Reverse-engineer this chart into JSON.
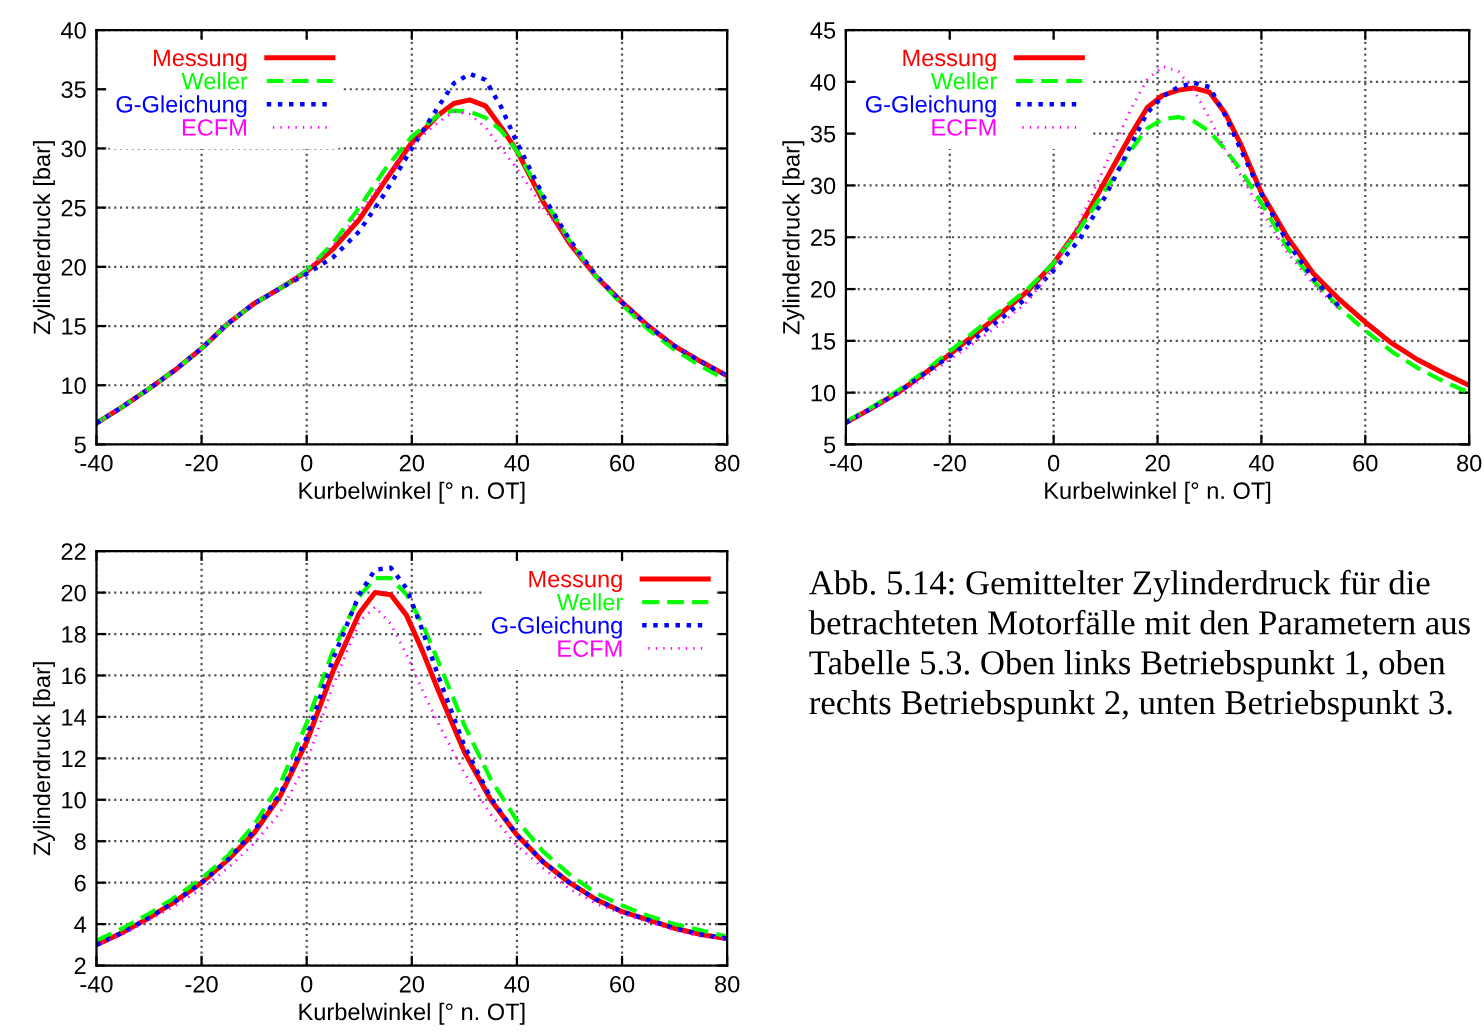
{
  "chart_data": [
    {
      "type": "line",
      "xlabel": "Kurbelwinkel [° n. OT]",
      "ylabel": "Zylinderdruck [bar]",
      "xlim": [
        -40,
        80
      ],
      "xticks": [
        -40,
        -20,
        0,
        20,
        40,
        60,
        80
      ],
      "ylim": [
        5,
        40
      ],
      "yticks": [
        5,
        10,
        15,
        20,
        25,
        30,
        35,
        40
      ],
      "grid": true,
      "legend": "top left",
      "x": [
        -40,
        -35,
        -30,
        -25,
        -20,
        -15,
        -10,
        -5,
        0,
        5,
        10,
        15,
        20,
        25,
        28,
        31,
        34,
        37,
        40,
        45,
        50,
        55,
        60,
        65,
        70,
        75,
        80
      ],
      "series": [
        {
          "name": "Messung",
          "color": "#ff0000",
          "line_style": "solid",
          "values": [
            6.8,
            8.2,
            9.7,
            11.3,
            13.1,
            15.2,
            16.9,
            18.2,
            19.6,
            21.5,
            24.0,
            27.3,
            30.5,
            32.8,
            33.8,
            34.1,
            33.6,
            31.8,
            29.8,
            25.5,
            22.0,
            19.2,
            17.0,
            15.0,
            13.3,
            12.0,
            10.8
          ]
        },
        {
          "name": "Weller",
          "color": "#00ff00",
          "line_style": "dashed",
          "values": [
            6.8,
            8.2,
            9.7,
            11.3,
            13.1,
            15.2,
            16.9,
            18.2,
            19.7,
            22.0,
            25.0,
            28.3,
            31.0,
            32.8,
            33.2,
            33.1,
            32.6,
            31.5,
            29.8,
            25.8,
            22.2,
            19.2,
            16.8,
            14.7,
            13.0,
            11.6,
            10.4
          ]
        },
        {
          "name": "G-Gleichung",
          "color": "#0000ff",
          "line_style": "dotted",
          "values": [
            6.8,
            8.2,
            9.7,
            11.3,
            13.1,
            15.2,
            16.9,
            18.2,
            19.4,
            20.8,
            23.0,
            26.3,
            30.0,
            33.5,
            35.5,
            36.3,
            35.8,
            33.5,
            30.5,
            26.0,
            22.3,
            19.3,
            17.0,
            15.0,
            13.3,
            12.0,
            10.8
          ]
        },
        {
          "name": "ECFM",
          "color": "#ff00ff",
          "line_style": "fine_dotted",
          "values": [
            6.8,
            8.2,
            9.7,
            11.3,
            13.1,
            15.2,
            16.9,
            18.2,
            19.7,
            21.8,
            24.5,
            27.6,
            30.3,
            32.2,
            33.1,
            32.9,
            31.8,
            30.0,
            28.3,
            25.0,
            22.0,
            19.2,
            17.0,
            15.0,
            13.3,
            12.0,
            10.8
          ]
        }
      ]
    },
    {
      "type": "line",
      "xlabel": "Kurbelwinkel [° n. OT]",
      "ylabel": "Zylinderdruck [bar]",
      "xlim": [
        -40,
        80
      ],
      "xticks": [
        -40,
        -20,
        0,
        20,
        40,
        60,
        80
      ],
      "ylim": [
        5,
        45
      ],
      "yticks": [
        5,
        10,
        15,
        20,
        25,
        30,
        35,
        40,
        45
      ],
      "grid": true,
      "legend": "top left",
      "x": [
        -40,
        -35,
        -30,
        -25,
        -20,
        -15,
        -10,
        -5,
        0,
        5,
        10,
        15,
        18,
        21,
        24,
        27,
        30,
        33,
        36,
        40,
        45,
        50,
        55,
        60,
        65,
        70,
        75,
        80
      ],
      "series": [
        {
          "name": "Messung",
          "color": "#ff0000",
          "line_style": "solid",
          "values": [
            7.1,
            8.5,
            10.0,
            11.8,
            13.7,
            15.7,
            17.7,
            19.8,
            22.5,
            26.0,
            30.5,
            35.0,
            37.5,
            38.7,
            39.2,
            39.4,
            39.0,
            37.0,
            34.0,
            29.3,
            25.0,
            21.5,
            19.0,
            16.8,
            14.8,
            13.2,
            11.9,
            10.7
          ]
        },
        {
          "name": "Weller",
          "color": "#00ff00",
          "line_style": "dashed",
          "values": [
            7.2,
            8.6,
            10.2,
            12.0,
            14.0,
            16.0,
            18.0,
            20.0,
            22.5,
            25.8,
            29.6,
            33.5,
            35.5,
            36.4,
            36.6,
            36.2,
            35.2,
            33.5,
            31.5,
            28.3,
            24.0,
            20.8,
            18.2,
            16.0,
            14.0,
            12.4,
            11.1,
            10.0
          ]
        },
        {
          "name": "G-Gleichung",
          "color": "#0000ff",
          "line_style": "dotted",
          "values": [
            7.1,
            8.5,
            10.0,
            11.8,
            13.5,
            15.3,
            17.2,
            19.2,
            21.8,
            24.8,
            29.0,
            34.0,
            37.0,
            38.6,
            39.5,
            39.9,
            39.5,
            36.8,
            33.5,
            29.2,
            24.5,
            21.0,
            18.3,
            null,
            null,
            null,
            null,
            null
          ]
        },
        {
          "name": "ECFM",
          "color": "#ff00ff",
          "line_style": "fine_dotted",
          "values": [
            7.1,
            8.4,
            9.8,
            11.4,
            13.2,
            14.9,
            16.7,
            18.8,
            22.0,
            26.5,
            32.0,
            37.5,
            40.2,
            41.5,
            41.0,
            39.2,
            36.5,
            33.5,
            31.0,
            27.5,
            23.5,
            20.5,
            18.0,
            null,
            null,
            null,
            null,
            null
          ]
        }
      ]
    },
    {
      "type": "line",
      "xlabel": "Kurbelwinkel [° n. OT]",
      "ylabel": "Zylinderdruck [bar]",
      "xlim": [
        -40,
        80
      ],
      "xticks": [
        -40,
        -20,
        0,
        20,
        40,
        60,
        80
      ],
      "ylim": [
        2,
        22
      ],
      "yticks": [
        2,
        4,
        6,
        8,
        10,
        12,
        14,
        16,
        18,
        20,
        22
      ],
      "grid": true,
      "legend": "top right",
      "x": [
        -40,
        -35,
        -30,
        -25,
        -20,
        -15,
        -10,
        -5,
        0,
        5,
        10,
        13,
        16,
        19,
        22,
        25,
        30,
        35,
        40,
        45,
        50,
        55,
        60,
        65,
        70,
        75,
        80
      ],
      "series": [
        {
          "name": "Messung",
          "color": "#ff0000",
          "line_style": "solid",
          "values": [
            3.0,
            3.6,
            4.3,
            5.1,
            6.0,
            7.1,
            8.4,
            10.2,
            12.8,
            16.2,
            19.0,
            20.0,
            19.9,
            18.9,
            17.2,
            15.3,
            12.3,
            10.0,
            8.3,
            7.0,
            6.0,
            5.2,
            4.6,
            4.2,
            3.8,
            3.5,
            3.3
          ]
        },
        {
          "name": "Weller",
          "color": "#00ff00",
          "line_style": "dashed",
          "values": [
            3.2,
            3.8,
            4.5,
            5.3,
            6.2,
            7.3,
            8.8,
            10.8,
            13.7,
            17.2,
            19.8,
            20.7,
            20.7,
            19.9,
            18.5,
            16.7,
            13.6,
            11.0,
            9.0,
            7.5,
            6.4,
            5.5,
            4.9,
            4.4,
            4.0,
            3.7,
            3.4
          ]
        },
        {
          "name": "G-Gleichung",
          "color": "#0000ff",
          "line_style": "dotted",
          "values": [
            3.0,
            3.6,
            4.3,
            5.1,
            6.0,
            7.1,
            8.5,
            10.3,
            13.0,
            16.8,
            19.9,
            21.1,
            21.2,
            20.2,
            18.2,
            16.0,
            12.6,
            10.1,
            8.3,
            7.0,
            6.0,
            5.2,
            4.6,
            4.2,
            3.8,
            3.5,
            3.3
          ]
        },
        {
          "name": "ECFM",
          "color": "#ff00ff",
          "line_style": "fine_dotted",
          "values": [
            3.0,
            3.5,
            4.2,
            4.9,
            5.7,
            6.7,
            7.9,
            9.4,
            11.8,
            15.5,
            18.6,
            19.3,
            18.5,
            17.0,
            15.3,
            13.7,
            11.3,
            9.3,
            7.8,
            6.7,
            5.7,
            5.0,
            4.5,
            4.1,
            3.7,
            3.4,
            3.3
          ]
        }
      ]
    },
    {
      "type": "other",
      "annotations": [
        "Abb. 5.14: Gemittelter Zylinderdruck für die betrachteten Motorfälle mit den Parametern aus Tabelle 5.3. Oben links Betriebspunkt 1, oben rechts Betriebspunkt 2, unten Betriebspunkt 3."
      ]
    }
  ]
}
